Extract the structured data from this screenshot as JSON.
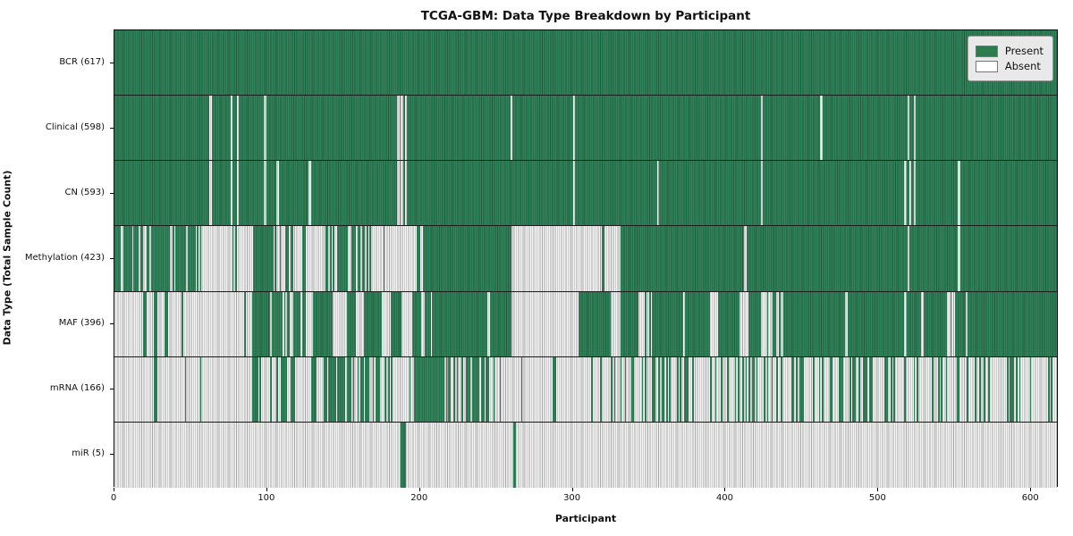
{
  "chart_data": {
    "type": "heatmap",
    "title": "TCGA-GBM: Data Type Breakdown by Participant",
    "xlabel": "Participant",
    "ylabel": "Data Type (Total Sample Count)",
    "xlim": [
      0,
      618
    ],
    "x_ticks": [
      0,
      100,
      200,
      300,
      400,
      500,
      600
    ],
    "grid": false,
    "legend_position": "upper right",
    "legend": [
      {
        "label": "Present",
        "color": "#2e7b50"
      },
      {
        "label": "Absent",
        "color": "#ffffff"
      }
    ],
    "rows": [
      {
        "label": "BCR (617)",
        "total": 617,
        "segments": [
          [
            0,
            618,
            "P"
          ]
        ]
      },
      {
        "label": "Clinical (598)",
        "total": 598,
        "segments": [
          [
            0,
            62,
            "P"
          ],
          [
            62,
            63.5,
            "A"
          ],
          [
            63.5,
            76,
            "P"
          ],
          [
            76,
            77.5,
            "A"
          ],
          [
            77.5,
            80,
            "P"
          ],
          [
            80,
            81.5,
            "A"
          ],
          [
            81.5,
            98,
            "P"
          ],
          [
            98,
            99.5,
            "A"
          ],
          [
            99.5,
            185,
            "P"
          ],
          [
            185,
            186.5,
            "A"
          ],
          [
            186.5,
            187.5,
            "P"
          ],
          [
            187.5,
            189,
            "A"
          ],
          [
            189,
            190,
            "P"
          ],
          [
            190,
            191.5,
            "A"
          ],
          [
            191.5,
            259,
            "P"
          ],
          [
            259,
            260.5,
            "A"
          ],
          [
            260.5,
            300,
            "P"
          ],
          [
            300,
            301.5,
            "A"
          ],
          [
            301.5,
            423,
            "P"
          ],
          [
            423,
            424.5,
            "A"
          ],
          [
            424.5,
            462,
            "P"
          ],
          [
            462,
            463.5,
            "A"
          ],
          [
            463.5,
            519,
            "P"
          ],
          [
            519,
            520.5,
            "A"
          ],
          [
            520.5,
            523,
            "P"
          ],
          [
            523,
            524.5,
            "A"
          ],
          [
            524.5,
            618,
            "P"
          ]
        ]
      },
      {
        "label": "CN (593)",
        "total": 593,
        "segments": [
          [
            0,
            62,
            "P"
          ],
          [
            62,
            63.5,
            "A"
          ],
          [
            63.5,
            76,
            "P"
          ],
          [
            76,
            77.5,
            "A"
          ],
          [
            77.5,
            80,
            "P"
          ],
          [
            80,
            81.5,
            "A"
          ],
          [
            81.5,
            98,
            "P"
          ],
          [
            98,
            99.5,
            "A"
          ],
          [
            99.5,
            106,
            "P"
          ],
          [
            106,
            107.5,
            "A"
          ],
          [
            107.5,
            127,
            "P"
          ],
          [
            127,
            128.5,
            "A"
          ],
          [
            128.5,
            185,
            "P"
          ],
          [
            185,
            186.5,
            "A"
          ],
          [
            186.5,
            187.5,
            "P"
          ],
          [
            187.5,
            189,
            "A"
          ],
          [
            189,
            190,
            "P"
          ],
          [
            190,
            191.5,
            "A"
          ],
          [
            191.5,
            300,
            "P"
          ],
          [
            300,
            301.5,
            "A"
          ],
          [
            301.5,
            355,
            "P"
          ],
          [
            355,
            356.5,
            "A"
          ],
          [
            356.5,
            423,
            "P"
          ],
          [
            423,
            424.5,
            "A"
          ],
          [
            424.5,
            517,
            "P"
          ],
          [
            517,
            518.5,
            "A"
          ],
          [
            518.5,
            520,
            "P"
          ],
          [
            520,
            521.5,
            "A"
          ],
          [
            521.5,
            523,
            "P"
          ],
          [
            523,
            524.5,
            "A"
          ],
          [
            524.5,
            552,
            "P"
          ],
          [
            552,
            553.5,
            "A"
          ],
          [
            553.5,
            618,
            "P"
          ]
        ]
      },
      {
        "label": "Methylation (423)",
        "total": 423,
        "segments": [
          [
            0,
            57,
            0.78
          ],
          [
            57,
            91,
            0.12
          ],
          [
            91,
            103,
            "P"
          ],
          [
            103,
            125,
            0.55
          ],
          [
            125,
            138,
            "A"
          ],
          [
            138,
            164,
            0.7
          ],
          [
            164,
            190,
            0.12
          ],
          [
            190,
            202,
            0.3
          ],
          [
            202,
            260,
            "P"
          ],
          [
            260,
            319,
            "A"
          ],
          [
            319,
            320.5,
            "P"
          ],
          [
            320.5,
            331,
            "A"
          ],
          [
            331,
            412,
            "P"
          ],
          [
            412,
            413.5,
            "A"
          ],
          [
            413.5,
            519,
            "P"
          ],
          [
            519,
            520.5,
            "A"
          ],
          [
            520.5,
            552,
            "P"
          ],
          [
            552,
            553.5,
            "A"
          ],
          [
            553.5,
            618,
            "P"
          ]
        ]
      },
      {
        "label": "MAF (396)",
        "total": 396,
        "segments": [
          [
            0,
            19,
            "A"
          ],
          [
            19,
            21,
            "P"
          ],
          [
            21,
            26,
            "A"
          ],
          [
            26,
            28,
            "P"
          ],
          [
            28,
            33,
            "A"
          ],
          [
            33,
            35,
            "P"
          ],
          [
            35,
            90,
            0.06
          ],
          [
            90,
            102,
            "P"
          ],
          [
            102,
            126,
            0.55
          ],
          [
            126,
            130,
            "A"
          ],
          [
            130,
            143,
            "P"
          ],
          [
            143,
            152,
            "A"
          ],
          [
            152,
            158,
            "P"
          ],
          [
            158,
            163,
            "A"
          ],
          [
            163,
            175,
            "P"
          ],
          [
            175,
            181,
            "A"
          ],
          [
            181,
            188,
            "P"
          ],
          [
            188,
            195,
            "A"
          ],
          [
            195,
            200,
            "P"
          ],
          [
            200,
            208,
            0.4
          ],
          [
            208,
            244,
            "P"
          ],
          [
            244,
            246,
            "A"
          ],
          [
            246,
            260,
            "P"
          ],
          [
            260,
            304,
            "A"
          ],
          [
            304,
            324,
            "P"
          ],
          [
            324,
            331,
            0.3
          ],
          [
            331,
            343,
            "P"
          ],
          [
            343,
            352,
            0.25
          ],
          [
            352,
            372,
            "P"
          ],
          [
            372,
            373.5,
            "A"
          ],
          [
            373.5,
            390,
            "P"
          ],
          [
            390,
            395,
            0.3
          ],
          [
            395,
            408,
            "P"
          ],
          [
            408,
            417,
            0.35
          ],
          [
            417,
            423,
            "P"
          ],
          [
            423,
            438,
            0.4
          ],
          [
            438,
            478,
            "P"
          ],
          [
            478,
            480,
            "A"
          ],
          [
            480,
            517,
            "P"
          ],
          [
            517,
            518.5,
            "A"
          ],
          [
            518.5,
            528,
            "P"
          ],
          [
            528,
            529.5,
            "A"
          ],
          [
            529.5,
            545,
            "P"
          ],
          [
            545,
            550,
            0.4
          ],
          [
            550,
            557,
            "P"
          ],
          [
            557,
            558.5,
            "A"
          ],
          [
            558.5,
            618,
            "P"
          ]
        ]
      },
      {
        "label": "mRNA (166)",
        "total": 166,
        "segments": [
          [
            0,
            26,
            "A"
          ],
          [
            26,
            28,
            "P"
          ],
          [
            28,
            90,
            0.04
          ],
          [
            90,
            94,
            "P"
          ],
          [
            94,
            103,
            0.2
          ],
          [
            103,
            118,
            0.5
          ],
          [
            118,
            129,
            "A"
          ],
          [
            129,
            132,
            "P"
          ],
          [
            132,
            137,
            "A"
          ],
          [
            137,
            153,
            0.5
          ],
          [
            153,
            161,
            0.2
          ],
          [
            161,
            175,
            0.65
          ],
          [
            175,
            182,
            0.4
          ],
          [
            182,
            193,
            "A"
          ],
          [
            193,
            245,
            0.78
          ],
          [
            245,
            260,
            0.25
          ],
          [
            260,
            287,
            0.08
          ],
          [
            287,
            289,
            "P"
          ],
          [
            289,
            309,
            "A"
          ],
          [
            309,
            618,
            0.32
          ]
        ]
      },
      {
        "label": "miR (5)",
        "total": 5,
        "segments": [
          [
            0,
            187,
            "A"
          ],
          [
            187,
            191,
            "P"
          ],
          [
            191,
            261,
            "A"
          ],
          [
            261,
            262.5,
            "P"
          ],
          [
            262.5,
            618,
            "A"
          ]
        ]
      }
    ]
  }
}
